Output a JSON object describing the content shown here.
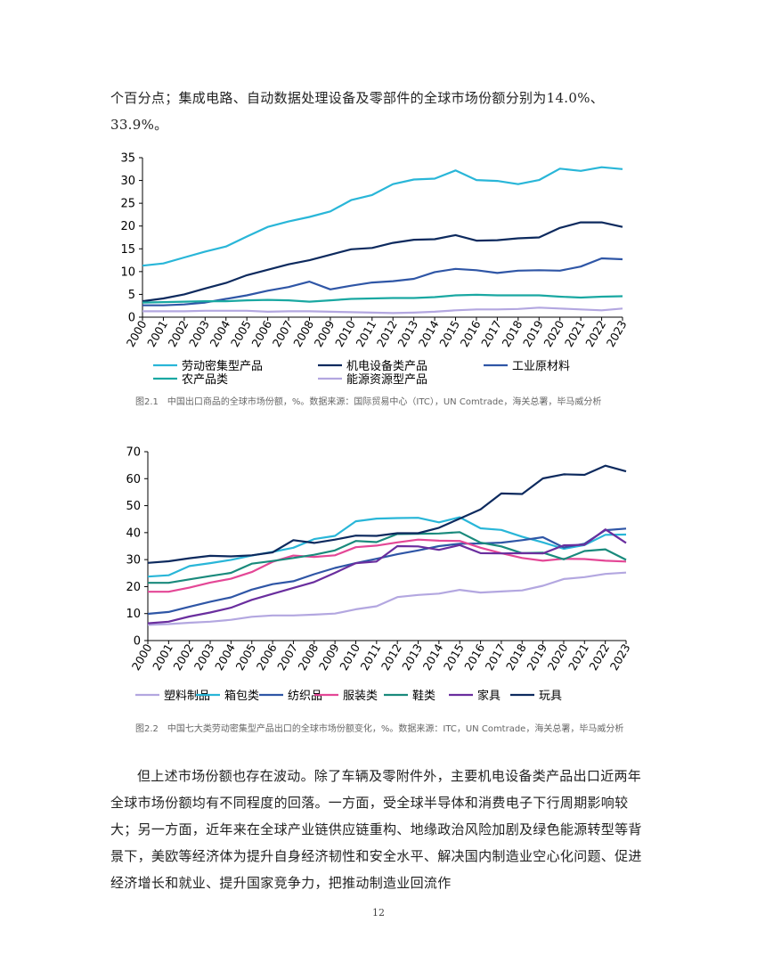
{
  "intro_text": "个百分点；集成电路、自动数据处理设备及零部件的全球市场份额分别为14.0%、33.9%。",
  "chart_data": [
    {
      "type": "line",
      "title": "",
      "xlabel": "",
      "ylabel": "",
      "ylim": [
        0,
        35
      ],
      "yticks": [
        0,
        5,
        10,
        15,
        20,
        25,
        30,
        35
      ],
      "grid": false,
      "legend_position": "bottom",
      "categories": [
        "2000",
        "2001",
        "2002",
        "2003",
        "2004",
        "2005",
        "2006",
        "2007",
        "2008",
        "2009",
        "2010",
        "2011",
        "2012",
        "2013",
        "2014",
        "2015",
        "2016",
        "2017",
        "2018",
        "2019",
        "2020",
        "2021",
        "2022",
        "2023"
      ],
      "series": [
        {
          "name": "劳动密集型产品",
          "color": "#29b6d8",
          "values": [
            11.3,
            11.8,
            13.1,
            14.4,
            15.5,
            17.7,
            19.8,
            21.0,
            22.0,
            23.2,
            25.7,
            26.8,
            29.2,
            30.2,
            30.4,
            32.2,
            30.1,
            29.9,
            29.2,
            30.1,
            32.6,
            32.1,
            32.9,
            32.5
          ]
        },
        {
          "name": "机电设备类产品",
          "color": "#0d2a5e",
          "values": [
            3.5,
            4.1,
            5.0,
            6.3,
            7.5,
            9.2,
            10.4,
            11.6,
            12.5,
            13.7,
            14.9,
            15.2,
            16.3,
            17.0,
            17.1,
            18.0,
            16.8,
            16.9,
            17.3,
            17.5,
            19.6,
            20.8,
            20.8,
            19.8
          ]
        },
        {
          "name": "工业原材料",
          "color": "#2f56a6",
          "values": [
            2.6,
            2.6,
            2.8,
            3.2,
            4.0,
            4.8,
            5.8,
            6.6,
            7.8,
            6.1,
            6.9,
            7.6,
            7.9,
            8.4,
            9.9,
            10.6,
            10.3,
            9.7,
            10.2,
            10.3,
            10.2,
            11.1,
            12.9,
            12.7
          ]
        },
        {
          "name": "农产品类",
          "color": "#1aa8a2",
          "values": [
            3.2,
            3.3,
            3.4,
            3.5,
            3.5,
            3.7,
            3.8,
            3.7,
            3.4,
            3.7,
            4.0,
            4.1,
            4.2,
            4.2,
            4.4,
            4.8,
            4.9,
            4.8,
            4.8,
            4.8,
            4.5,
            4.3,
            4.5,
            4.6
          ]
        },
        {
          "name": "能源资源型产品",
          "color": "#b3a7e0",
          "values": [
            1.3,
            1.3,
            1.3,
            1.4,
            1.4,
            1.4,
            1.2,
            1.3,
            1.3,
            1.2,
            1.1,
            1.0,
            0.9,
            1.0,
            1.2,
            1.5,
            1.7,
            1.7,
            1.8,
            2.1,
            1.9,
            1.7,
            1.5,
            1.9
          ]
        }
      ]
    },
    {
      "type": "line",
      "title": "",
      "xlabel": "",
      "ylabel": "",
      "ylim": [
        0,
        70
      ],
      "yticks": [
        0,
        10,
        20,
        30,
        40,
        50,
        60,
        70
      ],
      "grid": false,
      "legend_position": "bottom",
      "categories": [
        "2000",
        "2001",
        "2002",
        "2003",
        "2004",
        "2005",
        "2006",
        "2007",
        "2008",
        "2009",
        "2010",
        "2011",
        "2012",
        "2013",
        "2014",
        "2015",
        "2016",
        "2017",
        "2018",
        "2019",
        "2020",
        "2021",
        "2022",
        "2023"
      ],
      "series": [
        {
          "name": "塑料制品",
          "color": "#b3a7e0",
          "values": [
            5.8,
            6.1,
            6.6,
            7.0,
            7.7,
            8.8,
            9.3,
            9.3,
            9.6,
            10.0,
            11.6,
            12.7,
            16.1,
            16.9,
            17.4,
            18.8,
            17.8,
            18.2,
            18.6,
            20.3,
            22.8,
            23.5,
            24.7,
            25.2
          ]
        },
        {
          "name": "箱包类",
          "color": "#29b6d8",
          "values": [
            23.7,
            24.2,
            27.6,
            28.7,
            29.9,
            31.5,
            32.9,
            34.4,
            37.6,
            38.8,
            44.2,
            45.2,
            45.4,
            45.5,
            43.8,
            45.7,
            41.6,
            41.0,
            38.5,
            36.4,
            34.0,
            35.4,
            39.2,
            39.3
          ]
        },
        {
          "name": "纺织品",
          "color": "#2f56a6",
          "values": [
            9.9,
            10.6,
            12.5,
            14.4,
            16.0,
            18.9,
            20.9,
            22.0,
            24.6,
            26.9,
            28.7,
            30.3,
            32.0,
            33.4,
            35.0,
            35.9,
            36.0,
            36.3,
            37.2,
            38.3,
            34.5,
            35.9,
            40.9,
            41.5
          ]
        },
        {
          "name": "服装类",
          "color": "#e44796",
          "values": [
            18.1,
            18.1,
            19.6,
            21.5,
            22.9,
            25.4,
            29.2,
            31.5,
            31.0,
            31.6,
            34.6,
            35.2,
            36.4,
            37.4,
            37.0,
            36.9,
            34.4,
            32.4,
            30.6,
            29.6,
            30.3,
            30.2,
            29.6,
            29.3
          ]
        },
        {
          "name": "鞋类",
          "color": "#1a8a7c",
          "values": [
            21.4,
            21.4,
            22.7,
            23.9,
            25.1,
            28.5,
            29.5,
            30.6,
            31.8,
            33.4,
            36.9,
            36.5,
            39.5,
            39.6,
            39.7,
            40.2,
            36.3,
            34.9,
            32.4,
            32.6,
            30.1,
            33.2,
            33.8,
            29.9
          ]
        },
        {
          "name": "家具",
          "color": "#6a2e9e",
          "values": [
            6.4,
            7.0,
            8.9,
            10.4,
            12.2,
            15.1,
            17.3,
            19.5,
            21.7,
            25.1,
            28.7,
            29.3,
            35.0,
            34.9,
            33.6,
            35.4,
            32.4,
            32.3,
            32.4,
            32.3,
            35.3,
            35.5,
            41.2,
            36.2
          ]
        },
        {
          "name": "玩具",
          "color": "#0d2a5e",
          "values": [
            28.8,
            29.4,
            30.5,
            31.4,
            31.2,
            31.6,
            32.7,
            37.2,
            36.2,
            37.4,
            38.9,
            38.8,
            39.8,
            39.8,
            41.8,
            45.2,
            48.6,
            54.5,
            54.3,
            60.1,
            61.6,
            61.4,
            64.8,
            62.7
          ]
        }
      ]
    }
  ],
  "caption1": "图2.1　中国出口商品的全球市场份额，%。数据来源：国际贸易中心（ITC），UN Comtrade，海关总署，毕马威分析",
  "caption2": "图2.2　中国七大类劳动密集型产品出口的全球市场份额变化，%。数据来源：ITC，UN Comtrade，海关总署，毕马威分析",
  "body_text": "但上述市场份额也存在波动。除了车辆及零附件外，主要机电设备类产品出口近两年全球市场份额均有不同程度的回落。一方面，受全球半导体和消费电子下行周期影响较大；另一方面，近年来在全球产业链供应链重构、地缘政治风险加剧及绿色能源转型等背景下，美欧等经济体为提升自身经济韧性和安全水平、解决国内制造业空心化问题、促进经济增长和就业、提升国家竞争力，把推动制造业回流作",
  "page_number": "12"
}
